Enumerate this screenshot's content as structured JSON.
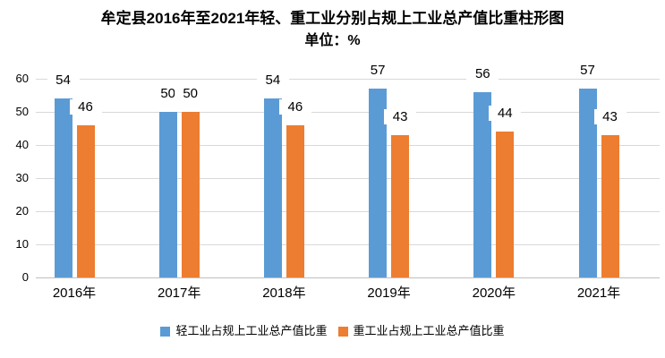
{
  "chart_data": {
    "type": "bar",
    "title": "牟定县2016年至2021年轻、重工业分别占规上工业总产值比重柱形图",
    "subtitle": "单位：%",
    "categories": [
      "2016年",
      "2017年",
      "2018年",
      "2019年",
      "2020年",
      "2021年"
    ],
    "series": [
      {
        "name": "轻工业占规上工业总产值比重",
        "color": "#5B9BD5",
        "values": [
          54,
          50,
          54,
          57,
          56,
          57
        ]
      },
      {
        "name": "重工业占规上工业总产值比重",
        "color": "#ED7D31",
        "values": [
          46,
          50,
          46,
          43,
          44,
          43
        ]
      }
    ],
    "ylim": [
      0,
      60
    ],
    "yticks": [
      0,
      10,
      20,
      30,
      40,
      50,
      60
    ],
    "grid": true,
    "data_labels": true,
    "legend_position": "bottom"
  },
  "colors": {
    "gridline": "#D9D9D9",
    "axis_line": "#BFBFBF",
    "text": "#000000"
  }
}
